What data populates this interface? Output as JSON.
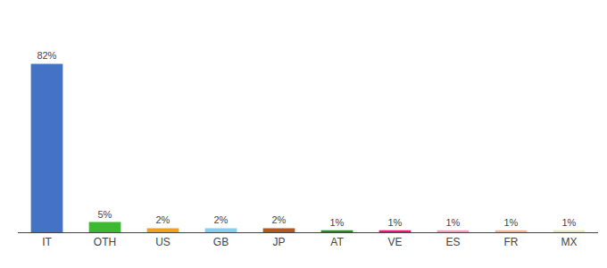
{
  "chart_data": {
    "type": "bar",
    "categories": [
      "IT",
      "OTH",
      "US",
      "GB",
      "JP",
      "AT",
      "VE",
      "ES",
      "FR",
      "MX"
    ],
    "values": [
      82,
      5,
      2,
      2,
      2,
      1,
      1,
      1,
      1,
      1
    ],
    "value_labels": [
      "82%",
      "5%",
      "2%",
      "2%",
      "2%",
      "1%",
      "1%",
      "1%",
      "1%",
      "1%"
    ],
    "colors": [
      "#4472c4",
      "#3cb832",
      "#f0a020",
      "#88ccee",
      "#b05820",
      "#2a8a2a",
      "#e8197a",
      "#f0a0b8",
      "#f0b898",
      "#e8e8c0"
    ],
    "ylim": [
      0,
      100
    ],
    "grid": false,
    "data_labels": true,
    "tick_labels": "x"
  }
}
